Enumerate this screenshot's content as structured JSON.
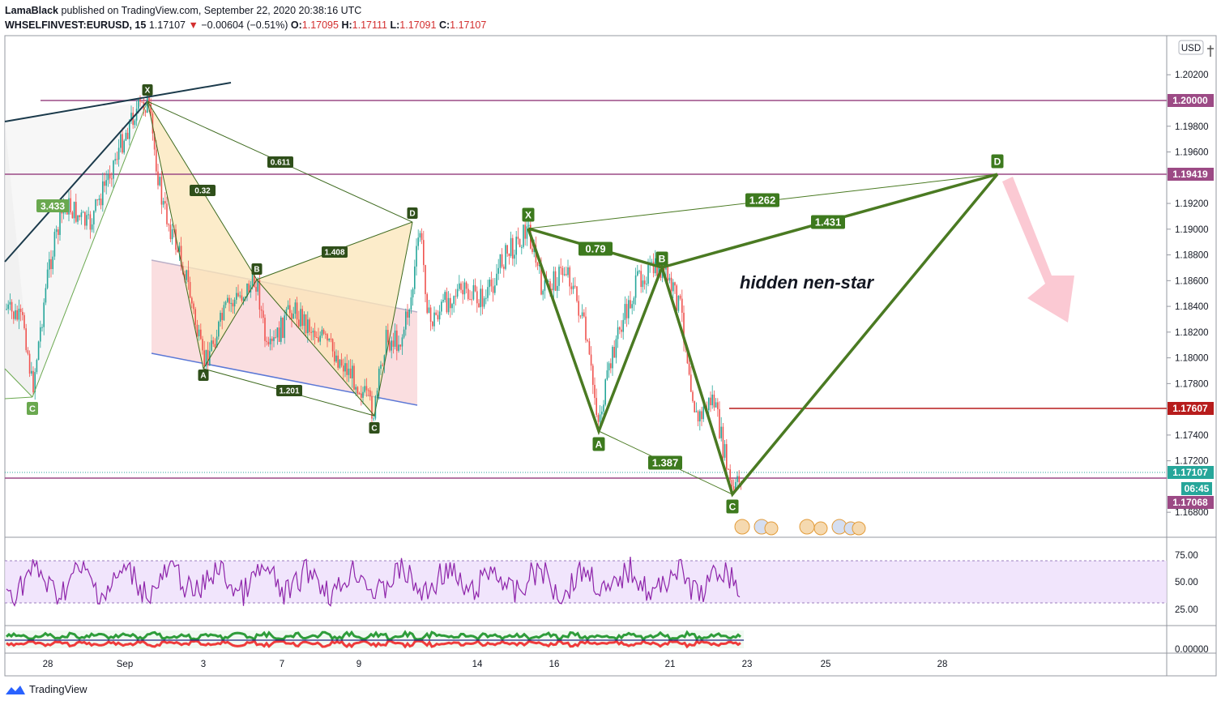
{
  "header": {
    "author": "LamaBlack",
    "published_text": "published on TradingView.com, September 22, 2020 20:38:16 UTC",
    "symbol": "WHSELFINVEST:EURUSD, 15",
    "last": "1.17107",
    "change": "−0.00604 (−0.51%)",
    "o_label": "O:",
    "o": "1.17095",
    "h_label": "H:",
    "h": "1.17111",
    "l_label": "L:",
    "l": "1.17091",
    "c_label": "C:",
    "c": "1.17107"
  },
  "currency_badge": "USD",
  "price_axis": {
    "ticks": [
      "1.20200",
      "1.19800",
      "1.19600",
      "1.19200",
      "1.19000",
      "1.18800",
      "1.18600",
      "1.18400",
      "1.18200",
      "1.18000",
      "1.17800",
      "1.17400",
      "1.17200",
      "1.16800"
    ],
    "markers": [
      {
        "label": "1.20000",
        "color": "#9c4a85"
      },
      {
        "label": "1.19419",
        "color": "#9c4a85"
      },
      {
        "label": "1.17607",
        "color": "#b71c1c"
      },
      {
        "label": "1.17107",
        "color": "#26a69a"
      },
      {
        "label": "06:45",
        "color": "#26a69a"
      },
      {
        "label": "1.17068",
        "color": "#9c4a85"
      }
    ]
  },
  "time_axis": [
    "28",
    "Sep",
    "3",
    "7",
    "9",
    "14",
    "16",
    "21",
    "23",
    "25",
    "28"
  ],
  "rsi_axis": [
    "75.00",
    "50.00",
    "25.00"
  ],
  "osc_axis": [
    "0.00000"
  ],
  "annotation_text": "hidden nen-star",
  "pattern1": {
    "points": [
      "X",
      "A",
      "B",
      "C",
      "D"
    ],
    "ratios": [
      "0.32",
      "0.611",
      "1.408",
      "1.201"
    ],
    "left_ratio": "3.433",
    "left_point": "C"
  },
  "pattern2": {
    "points": [
      "X",
      "A",
      "B",
      "C",
      "D"
    ],
    "ratios": [
      "0.79",
      "1.262",
      "1.431",
      "1.387"
    ]
  },
  "footer": {
    "brand": "TradingView"
  },
  "chart_data": {
    "type": "candlestick",
    "symbol": "WHSELFINVEST:EURUSD",
    "timeframe": "15",
    "ohlc_last": {
      "open": 1.17095,
      "high": 1.17111,
      "low": 1.17091,
      "close": 1.17107
    },
    "horizontal_levels": [
      1.2,
      1.19419,
      1.17607,
      1.17068
    ],
    "ylim": [
      1.1665,
      1.2045
    ],
    "x_ticks": [
      "28",
      "Sep",
      "3",
      "7",
      "9",
      "14",
      "16",
      "21",
      "23",
      "25",
      "28"
    ],
    "rsi_levels": [
      75,
      50,
      25
    ]
  }
}
